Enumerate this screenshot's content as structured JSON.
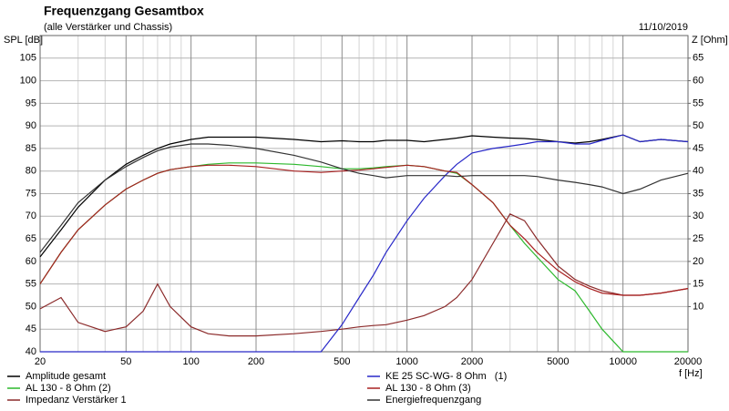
{
  "chart_data": {
    "type": "line",
    "title": "Frequenzgang Gesamtbox",
    "subtitle": "(alle Verstärker und Chassis)",
    "date": "11/10/2019",
    "ylabel": "SPL [dB]",
    "y2label": "Z [Ohm]",
    "xlabel": "f [Hz]",
    "xscale": "log",
    "grid": true,
    "x": [
      20,
      25,
      30,
      40,
      50,
      60,
      70,
      80,
      100,
      120,
      150,
      200,
      300,
      400,
      500,
      600,
      700,
      800,
      1000,
      1200,
      1500,
      1700,
      2000,
      2500,
      3000,
      3500,
      4000,
      5000,
      6000,
      7000,
      8000,
      10000,
      12000,
      15000,
      20000
    ],
    "xlim": [
      20,
      20000
    ],
    "xticks": [
      20,
      50,
      100,
      200,
      500,
      1000,
      2000,
      5000,
      10000,
      20000
    ],
    "xminorticks": [
      30,
      40,
      60,
      70,
      80,
      90,
      300,
      400,
      600,
      700,
      800,
      900,
      3000,
      4000,
      6000,
      7000,
      8000,
      9000
    ],
    "ylim": [
      40,
      110
    ],
    "yticks": [
      40,
      45,
      50,
      55,
      60,
      65,
      70,
      75,
      80,
      85,
      90,
      95,
      100,
      105
    ],
    "y2lim": [
      0,
      70
    ],
    "y2ticks": [
      10,
      15,
      20,
      25,
      30,
      35,
      40,
      45,
      50,
      55,
      60,
      65
    ],
    "series": [
      {
        "name": "Amplitude gesamt",
        "color": "#000000",
        "values": [
          61,
          67,
          72,
          78,
          81.5,
          83.5,
          85,
          86,
          87,
          87.5,
          87.5,
          87.5,
          87,
          86.5,
          86.7,
          86.5,
          86.5,
          86.8,
          86.8,
          86.5,
          87,
          87.3,
          87.8,
          87.5,
          87.3,
          87.2,
          87,
          86.5,
          86.2,
          86.5,
          87,
          88,
          86.5,
          87,
          86.5
        ]
      },
      {
        "name": "AL 130 - 8 Ohm (2)",
        "color": "#2cb82c",
        "values": [
          55,
          62,
          67,
          72.5,
          76,
          78,
          79.5,
          80.3,
          81,
          81.5,
          81.8,
          81.8,
          81.5,
          81,
          80.5,
          80.5,
          80.7,
          81,
          81.3,
          81,
          80,
          79.5,
          77,
          73,
          68,
          64,
          61,
          56,
          53.5,
          49,
          45,
          40,
          40,
          40,
          40
        ]
      },
      {
        "name": "Impedanz Verstärker 1",
        "color": "#8b2a2a",
        "axis": "y2",
        "values": [
          9.5,
          12,
          6.5,
          4.5,
          5.5,
          9,
          15,
          10,
          5.5,
          4,
          3.5,
          3.5,
          4,
          4.5,
          5,
          5.5,
          5.8,
          6,
          7,
          8,
          10,
          12,
          16,
          24,
          30.5,
          29,
          25,
          19,
          16,
          14.5,
          13.5,
          12.5,
          12.5,
          13,
          14
        ]
      },
      {
        "name": "KE 25 SC-WG- 8 Ohm   (1)",
        "color": "#2828c8",
        "values": [
          40,
          40,
          40,
          40,
          40,
          40,
          40,
          40,
          40,
          40,
          40,
          40,
          40,
          40,
          46,
          52,
          57,
          62,
          69,
          74,
          79,
          81.5,
          84,
          85,
          85.5,
          86,
          86.5,
          86.5,
          86,
          86,
          86.8,
          88,
          86.5,
          87,
          86.5
        ]
      },
      {
        "name": "AL 130 - 8 Ohm (3)",
        "color": "#a82020",
        "values": [
          55,
          62,
          67,
          72.5,
          76,
          78,
          79.5,
          80.3,
          81,
          81.3,
          81.3,
          81,
          80,
          79.7,
          80,
          80.2,
          80.5,
          80.8,
          81.3,
          81,
          80,
          79.7,
          77,
          73,
          68,
          65,
          62,
          58,
          55.5,
          54,
          53,
          52.5,
          52.5,
          53,
          54
        ]
      },
      {
        "name": "Energiefrequenzgang",
        "color": "#333333",
        "values": [
          62,
          68,
          73,
          78,
          81,
          83,
          84.5,
          85.3,
          86,
          86,
          85.7,
          85,
          83.5,
          82,
          80.5,
          79.5,
          79,
          78.5,
          79,
          79,
          79,
          78.8,
          79,
          79,
          79,
          79,
          78.8,
          78,
          77.5,
          77,
          76.5,
          75,
          76,
          78,
          79.5
        ]
      }
    ]
  }
}
